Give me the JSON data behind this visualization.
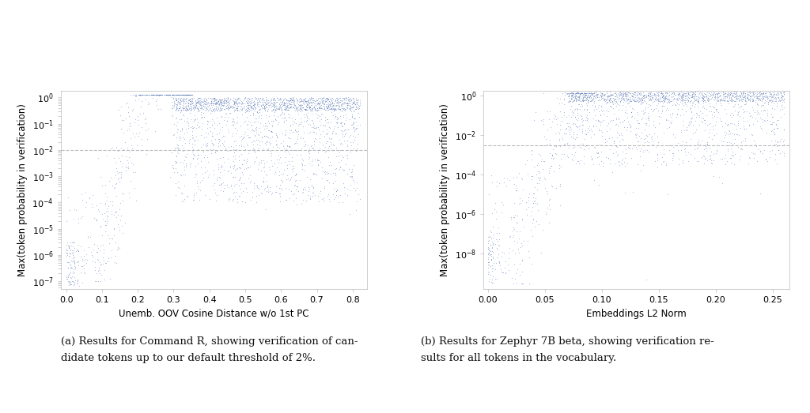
{
  "fig_width": 10.24,
  "fig_height": 5.23,
  "background_color": "#ffffff",
  "dot_color": "#5b7ab5",
  "dot_size": 2.5,
  "dot_alpha": 0.55,
  "plot1": {
    "xlabel": "Unemb. OOV Cosine Distance w/o 1st PC",
    "ylabel": "Max(token probability in verification)",
    "xlim": [
      -0.015,
      0.84
    ],
    "ylim_log": [
      -7.3,
      0.25
    ],
    "hline_y": 0.01,
    "hline_color": "#bbbbbb",
    "hline_style": "--",
    "xticks": [
      0.0,
      0.1,
      0.2,
      0.3,
      0.4,
      0.5,
      0.6,
      0.7,
      0.8
    ],
    "caption_a1": "(a) Results for Command R, showing verification of can-",
    "caption_a2": "didate tokens up to our default threshold of 2%."
  },
  "plot2": {
    "xlabel": "Embeddings L2 Norm",
    "ylabel": "Max(token probability in verification)",
    "xlim": [
      -0.004,
      0.265
    ],
    "ylim_log": [
      -9.8,
      0.25
    ],
    "hline_y": 0.003,
    "hline_color": "#bbbbbb",
    "hline_style": "--",
    "xticks": [
      0.0,
      0.05,
      0.1,
      0.15,
      0.2,
      0.25
    ],
    "caption_b1": "(b) Results for Zephyr 7B beta, showing verification re-",
    "caption_b2": "sults for all tokens in the vocabulary."
  }
}
